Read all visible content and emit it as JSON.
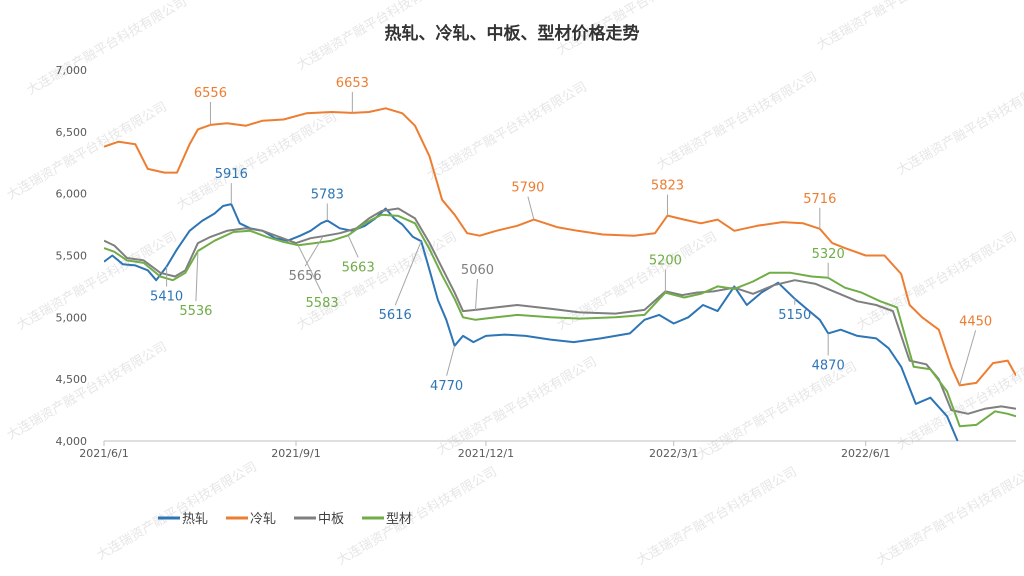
{
  "chart_data": {
    "type": "line",
    "title": "热轧、冷轧、中板、型材价格走势",
    "xlabel": "",
    "ylabel": "",
    "x_range": [
      "2021-06-01",
      "2022-08-12"
    ],
    "ylim": [
      4000,
      7000
    ],
    "y_ticks": [
      4000,
      4500,
      5000,
      5500,
      6000,
      6500,
      7000
    ],
    "y_tick_labels": [
      "4,000",
      "4,500",
      "5,000",
      "5,500",
      "6,000",
      "6,500",
      "7,000"
    ],
    "x_ticks": [
      "2021-06-01",
      "2021-09-01",
      "2021-12-01",
      "2022-03-01",
      "2022-06-01"
    ],
    "x_tick_labels": [
      "2021/6/1",
      "2021/9/1",
      "2021/12/1",
      "2022/3/1",
      "2022/6/1"
    ],
    "grid": false,
    "legend": "bottom-left",
    "watermark": "大连瑞资产融平台科技有限公司",
    "series": [
      {
        "name": "热轧",
        "color": "#2e75b6",
        "points": [
          [
            "2021-06-01",
            5450
          ],
          [
            "2021-06-05",
            5500
          ],
          [
            "2021-06-10",
            5430
          ],
          [
            "2021-06-16",
            5420
          ],
          [
            "2021-06-22",
            5380
          ],
          [
            "2021-06-26",
            5300
          ],
          [
            "2021-07-01",
            5410
          ],
          [
            "2021-07-06",
            5550
          ],
          [
            "2021-07-12",
            5700
          ],
          [
            "2021-07-18",
            5780
          ],
          [
            "2021-07-24",
            5840
          ],
          [
            "2021-07-28",
            5900
          ],
          [
            "2021-08-01",
            5916
          ],
          [
            "2021-08-05",
            5760
          ],
          [
            "2021-08-10",
            5720
          ],
          [
            "2021-08-16",
            5700
          ],
          [
            "2021-08-22",
            5640
          ],
          [
            "2021-08-28",
            5620
          ],
          [
            "2021-09-03",
            5660
          ],
          [
            "2021-09-08",
            5700
          ],
          [
            "2021-09-13",
            5760
          ],
          [
            "2021-09-16",
            5783
          ],
          [
            "2021-09-22",
            5720
          ],
          [
            "2021-09-28",
            5700
          ],
          [
            "2021-10-04",
            5740
          ],
          [
            "2021-10-09",
            5800
          ],
          [
            "2021-10-14",
            5880
          ],
          [
            "2021-10-18",
            5800
          ],
          [
            "2021-10-22",
            5750
          ],
          [
            "2021-10-27",
            5650
          ],
          [
            "2021-10-31",
            5616
          ],
          [
            "2021-11-04",
            5380
          ],
          [
            "2021-11-08",
            5140
          ],
          [
            "2021-11-12",
            4980
          ],
          [
            "2021-11-16",
            4770
          ],
          [
            "2021-11-20",
            4850
          ],
          [
            "2021-11-25",
            4800
          ],
          [
            "2021-12-01",
            4850
          ],
          [
            "2021-12-10",
            4860
          ],
          [
            "2021-12-20",
            4850
          ],
          [
            "2022-01-01",
            4820
          ],
          [
            "2022-01-12",
            4800
          ],
          [
            "2022-01-25",
            4830
          ],
          [
            "2022-02-08",
            4870
          ],
          [
            "2022-02-15",
            4980
          ],
          [
            "2022-02-22",
            5020
          ],
          [
            "2022-03-01",
            4950
          ],
          [
            "2022-03-08",
            5000
          ],
          [
            "2022-03-15",
            5100
          ],
          [
            "2022-03-22",
            5050
          ],
          [
            "2022-03-30",
            5250
          ],
          [
            "2022-04-05",
            5100
          ],
          [
            "2022-04-12",
            5200
          ],
          [
            "2022-04-20",
            5280
          ],
          [
            "2022-04-28",
            5150
          ],
          [
            "2022-05-05",
            5050
          ],
          [
            "2022-05-10",
            4980
          ],
          [
            "2022-05-14",
            4870
          ],
          [
            "2022-05-20",
            4900
          ],
          [
            "2022-05-28",
            4850
          ],
          [
            "2022-06-06",
            4830
          ],
          [
            "2022-06-12",
            4750
          ],
          [
            "2022-06-18",
            4600
          ],
          [
            "2022-06-25",
            4300
          ],
          [
            "2022-07-02",
            4350
          ],
          [
            "2022-07-10",
            4200
          ],
          [
            "2022-07-15",
            4000
          ]
        ]
      },
      {
        "name": "冷轧",
        "color": "#ed7d31",
        "points": [
          [
            "2021-06-01",
            6380
          ],
          [
            "2021-06-08",
            6420
          ],
          [
            "2021-06-16",
            6400
          ],
          [
            "2021-06-22",
            6200
          ],
          [
            "2021-06-30",
            6170
          ],
          [
            "2021-07-06",
            6170
          ],
          [
            "2021-07-12",
            6400
          ],
          [
            "2021-07-16",
            6520
          ],
          [
            "2021-07-22",
            6556
          ],
          [
            "2021-07-30",
            6570
          ],
          [
            "2021-08-08",
            6550
          ],
          [
            "2021-08-16",
            6590
          ],
          [
            "2021-08-26",
            6600
          ],
          [
            "2021-09-06",
            6650
          ],
          [
            "2021-09-18",
            6660
          ],
          [
            "2021-09-28",
            6653
          ],
          [
            "2021-10-06",
            6660
          ],
          [
            "2021-10-14",
            6690
          ],
          [
            "2021-10-22",
            6650
          ],
          [
            "2021-10-28",
            6550
          ],
          [
            "2021-11-04",
            6300
          ],
          [
            "2021-11-10",
            5950
          ],
          [
            "2021-11-16",
            5830
          ],
          [
            "2021-11-22",
            5680
          ],
          [
            "2021-11-28",
            5660
          ],
          [
            "2021-12-06",
            5700
          ],
          [
            "2021-12-16",
            5740
          ],
          [
            "2021-12-24",
            5790
          ],
          [
            "2022-01-04",
            5730
          ],
          [
            "2022-01-14",
            5700
          ],
          [
            "2022-01-26",
            5670
          ],
          [
            "2022-02-10",
            5660
          ],
          [
            "2022-02-20",
            5680
          ],
          [
            "2022-02-26",
            5823
          ],
          [
            "2022-03-06",
            5790
          ],
          [
            "2022-03-14",
            5760
          ],
          [
            "2022-03-22",
            5790
          ],
          [
            "2022-03-30",
            5700
          ],
          [
            "2022-04-10",
            5740
          ],
          [
            "2022-04-22",
            5770
          ],
          [
            "2022-05-02",
            5760
          ],
          [
            "2022-05-10",
            5716
          ],
          [
            "2022-05-16",
            5600
          ],
          [
            "2022-05-22",
            5560
          ],
          [
            "2022-06-01",
            5500
          ],
          [
            "2022-06-10",
            5500
          ],
          [
            "2022-06-18",
            5350
          ],
          [
            "2022-06-22",
            5100
          ],
          [
            "2022-06-28",
            5000
          ],
          [
            "2022-07-06",
            4900
          ],
          [
            "2022-07-12",
            4600
          ],
          [
            "2022-07-16",
            4450
          ],
          [
            "2022-07-24",
            4470
          ],
          [
            "2022-08-01",
            4630
          ],
          [
            "2022-08-08",
            4650
          ],
          [
            "2022-08-12",
            4530
          ]
        ]
      },
      {
        "name": "中板",
        "color": "#7f7f7f",
        "points": [
          [
            "2021-06-01",
            5620
          ],
          [
            "2021-06-06",
            5580
          ],
          [
            "2021-06-12",
            5480
          ],
          [
            "2021-06-20",
            5460
          ],
          [
            "2021-06-28",
            5360
          ],
          [
            "2021-07-05",
            5330
          ],
          [
            "2021-07-10",
            5380
          ],
          [
            "2021-07-16",
            5600
          ],
          [
            "2021-07-22",
            5650
          ],
          [
            "2021-07-30",
            5700
          ],
          [
            "2021-08-08",
            5720
          ],
          [
            "2021-08-16",
            5700
          ],
          [
            "2021-08-24",
            5650
          ],
          [
            "2021-09-01",
            5600
          ],
          [
            "2021-09-08",
            5640
          ],
          [
            "2021-09-14",
            5656
          ],
          [
            "2021-09-22",
            5680
          ],
          [
            "2021-09-30",
            5720
          ],
          [
            "2021-10-06",
            5800
          ],
          [
            "2021-10-12",
            5860
          ],
          [
            "2021-10-20",
            5880
          ],
          [
            "2021-10-28",
            5800
          ],
          [
            "2021-11-04",
            5600
          ],
          [
            "2021-11-10",
            5400
          ],
          [
            "2021-11-16",
            5200
          ],
          [
            "2021-11-20",
            5050
          ],
          [
            "2021-11-26",
            5060
          ],
          [
            "2021-12-06",
            5080
          ],
          [
            "2021-12-16",
            5100
          ],
          [
            "2022-01-01",
            5070
          ],
          [
            "2022-01-15",
            5040
          ],
          [
            "2022-02-01",
            5030
          ],
          [
            "2022-02-15",
            5060
          ],
          [
            "2022-02-25",
            5210
          ],
          [
            "2022-03-05",
            5180
          ],
          [
            "2022-03-12",
            5200
          ],
          [
            "2022-03-20",
            5210
          ],
          [
            "2022-03-30",
            5240
          ],
          [
            "2022-04-08",
            5190
          ],
          [
            "2022-04-18",
            5260
          ],
          [
            "2022-04-28",
            5300
          ],
          [
            "2022-05-08",
            5270
          ],
          [
            "2022-05-18",
            5200
          ],
          [
            "2022-05-28",
            5130
          ],
          [
            "2022-06-06",
            5100
          ],
          [
            "2022-06-14",
            5050
          ],
          [
            "2022-06-22",
            4650
          ],
          [
            "2022-06-30",
            4620
          ],
          [
            "2022-07-06",
            4500
          ],
          [
            "2022-07-12",
            4250
          ],
          [
            "2022-07-20",
            4220
          ],
          [
            "2022-07-28",
            4260
          ],
          [
            "2022-08-05",
            4280
          ],
          [
            "2022-08-12",
            4260
          ]
        ]
      },
      {
        "name": "型材",
        "color": "#70ad47",
        "points": [
          [
            "2021-06-01",
            5560
          ],
          [
            "2021-06-06",
            5530
          ],
          [
            "2021-06-12",
            5460
          ],
          [
            "2021-06-20",
            5440
          ],
          [
            "2021-06-28",
            5330
          ],
          [
            "2021-07-04",
            5300
          ],
          [
            "2021-07-10",
            5360
          ],
          [
            "2021-07-16",
            5536
          ],
          [
            "2021-07-24",
            5620
          ],
          [
            "2021-08-02",
            5690
          ],
          [
            "2021-08-10",
            5700
          ],
          [
            "2021-08-18",
            5650
          ],
          [
            "2021-08-26",
            5610
          ],
          [
            "2021-09-02",
            5583
          ],
          [
            "2021-09-10",
            5600
          ],
          [
            "2021-09-18",
            5620
          ],
          [
            "2021-09-26",
            5663
          ],
          [
            "2021-10-04",
            5760
          ],
          [
            "2021-10-12",
            5830
          ],
          [
            "2021-10-20",
            5820
          ],
          [
            "2021-10-28",
            5760
          ],
          [
            "2021-11-04",
            5550
          ],
          [
            "2021-11-10",
            5340
          ],
          [
            "2021-11-16",
            5150
          ],
          [
            "2021-11-20",
            5000
          ],
          [
            "2021-11-26",
            4980
          ],
          [
            "2021-12-06",
            5000
          ],
          [
            "2021-12-16",
            5020
          ],
          [
            "2022-01-01",
            5000
          ],
          [
            "2022-01-15",
            4990
          ],
          [
            "2022-02-01",
            5000
          ],
          [
            "2022-02-15",
            5020
          ],
          [
            "2022-02-25",
            5200
          ],
          [
            "2022-03-06",
            5160
          ],
          [
            "2022-03-14",
            5190
          ],
          [
            "2022-03-22",
            5250
          ],
          [
            "2022-03-30",
            5230
          ],
          [
            "2022-04-08",
            5290
          ],
          [
            "2022-04-16",
            5360
          ],
          [
            "2022-04-26",
            5360
          ],
          [
            "2022-05-06",
            5330
          ],
          [
            "2022-05-14",
            5320
          ],
          [
            "2022-05-22",
            5240
          ],
          [
            "2022-05-30",
            5200
          ],
          [
            "2022-06-08",
            5130
          ],
          [
            "2022-06-16",
            5080
          ],
          [
            "2022-06-24",
            4600
          ],
          [
            "2022-07-02",
            4580
          ],
          [
            "2022-07-10",
            4400
          ],
          [
            "2022-07-16",
            4120
          ],
          [
            "2022-07-24",
            4130
          ],
          [
            "2022-08-02",
            4240
          ],
          [
            "2022-08-08",
            4220
          ],
          [
            "2022-08-12",
            4200
          ]
        ]
      }
    ],
    "annotations": [
      {
        "series": "热轧",
        "x": "2021-08-01",
        "y": 5916,
        "text": "5916",
        "dx": 0,
        "dy": -26
      },
      {
        "series": "热轧",
        "x": "2021-09-16",
        "y": 5783,
        "text": "5783",
        "dx": 0,
        "dy": -22
      },
      {
        "series": "热轧",
        "x": "2021-07-01",
        "y": 5410,
        "text": "5410",
        "dx": 0,
        "dy": 34
      },
      {
        "series": "热轧",
        "x": "2021-10-31",
        "y": 5616,
        "text": "5616",
        "dx": -26,
        "dy": 78
      },
      {
        "series": "热轧",
        "x": "2021-11-16",
        "y": 4770,
        "text": "4770",
        "dx": -8,
        "dy": 44
      },
      {
        "series": "热轧",
        "x": "2022-04-28",
        "y": 5150,
        "text": "5150",
        "dx": 0,
        "dy": 20
      },
      {
        "series": "热轧",
        "x": "2022-05-14",
        "y": 4870,
        "text": "4870",
        "dx": 0,
        "dy": 36
      },
      {
        "series": "冷轧",
        "x": "2021-07-22",
        "y": 6556,
        "text": "6556",
        "dx": 0,
        "dy": -28
      },
      {
        "series": "冷轧",
        "x": "2021-09-28",
        "y": 6653,
        "text": "6653",
        "dx": 0,
        "dy": -26
      },
      {
        "series": "冷轧",
        "x": "2021-12-24",
        "y": 5790,
        "text": "5790",
        "dx": -6,
        "dy": -28
      },
      {
        "series": "冷轧",
        "x": "2022-02-26",
        "y": 5823,
        "text": "5823",
        "dx": 0,
        "dy": -26
      },
      {
        "series": "冷轧",
        "x": "2022-05-10",
        "y": 5716,
        "text": "5716",
        "dx": 0,
        "dy": -26
      },
      {
        "series": "冷轧",
        "x": "2022-07-16",
        "y": 4450,
        "text": "4450",
        "dx": 16,
        "dy": -60
      },
      {
        "series": "中板",
        "x": "2021-09-14",
        "y": 5656,
        "text": "5656",
        "dx": -18,
        "dy": 44
      },
      {
        "series": "中板",
        "x": "2021-11-26",
        "y": 5060,
        "text": "5060",
        "dx": 2,
        "dy": -36
      },
      {
        "series": "型材",
        "x": "2021-07-16",
        "y": 5536,
        "text": "5536",
        "dx": -2,
        "dy": 64
      },
      {
        "series": "型材",
        "x": "2021-09-02",
        "y": 5583,
        "text": "5583",
        "dx": 24,
        "dy": 62
      },
      {
        "series": "型材",
        "x": "2021-09-26",
        "y": 5663,
        "text": "5663",
        "dx": 10,
        "dy": 36
      },
      {
        "series": "型材",
        "x": "2022-02-25",
        "y": 5200,
        "text": "5200",
        "dx": 0,
        "dy": -28
      },
      {
        "series": "型材",
        "x": "2022-05-14",
        "y": 5320,
        "text": "5320",
        "dx": 0,
        "dy": -20
      }
    ]
  }
}
